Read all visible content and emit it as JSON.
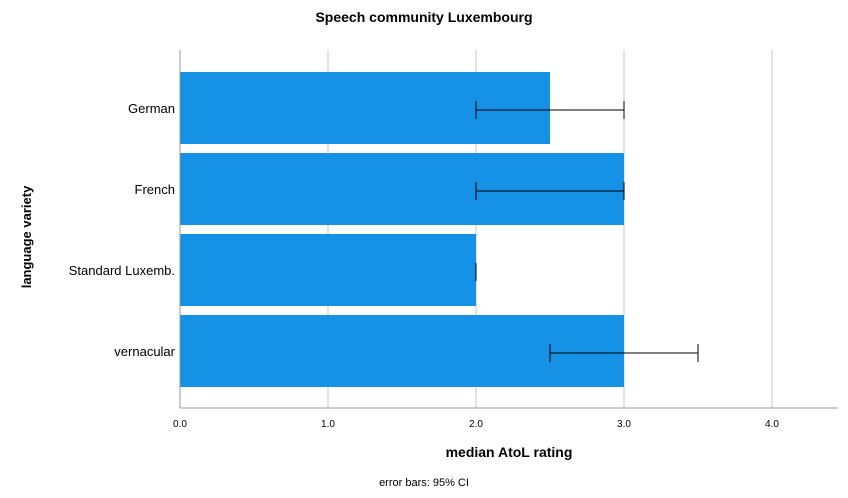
{
  "chart_data": {
    "type": "bar",
    "orientation": "horizontal",
    "title": "Speech community Luxembourg",
    "xlabel": "median AtoL rating",
    "ylabel": "language variety",
    "xlim": [
      0,
      4.45
    ],
    "xticks": [
      "0.0",
      "1.0",
      "2.0",
      "3.0",
      "4.0"
    ],
    "xtick_values": [
      0,
      1,
      2,
      3,
      4
    ],
    "grid": true,
    "categories": [
      "German",
      "French",
      "Standard Luxemb.",
      "vernacular"
    ],
    "values": [
      2.5,
      3.0,
      2.0,
      3.0
    ],
    "error_bars": [
      [
        2.0,
        3.0
      ],
      [
        2.0,
        3.0
      ],
      [
        2.0,
        2.0
      ],
      [
        2.5,
        3.5
      ]
    ],
    "footnote": "error bars: 95% CI",
    "bar_color": "#1591e6",
    "grid_color": "#c4c4c4",
    "axis_color": "#999999"
  }
}
